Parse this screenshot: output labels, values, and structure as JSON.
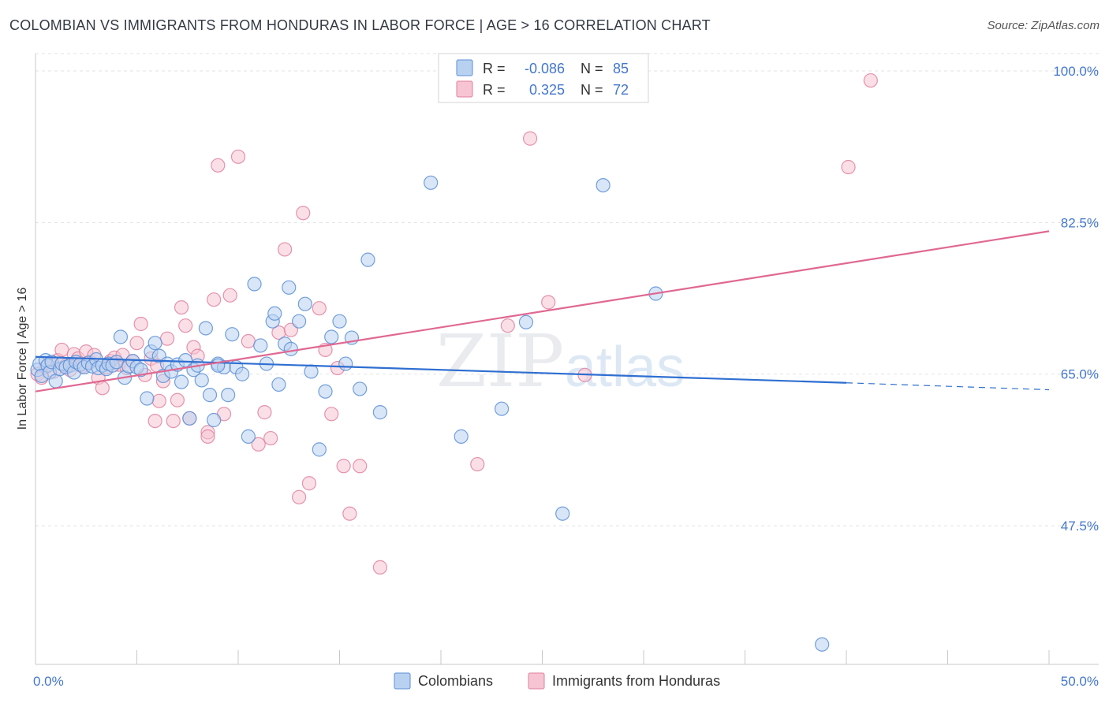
{
  "title": "COLOMBIAN VS IMMIGRANTS FROM HONDURAS IN LABOR FORCE | AGE > 16 CORRELATION CHART",
  "source": "Source: ZipAtlas.com",
  "watermark": {
    "zip": "ZIP",
    "atlas": "atlas"
  },
  "legend_top": {
    "rows": [
      {
        "r_label": "R =",
        "r_value": "-0.086",
        "n_label": "N =",
        "n_value": "85",
        "color": "#5b8fd6",
        "fill": "#b9d1f1"
      },
      {
        "r_label": "R =",
        "r_value": "0.325",
        "n_label": "N =",
        "n_value": "72",
        "color": "#e0819f",
        "fill": "#f6c4d3"
      }
    ]
  },
  "legend_bottom": [
    {
      "label": "Colombians",
      "color": "#5b8fd6",
      "fill": "#b9d1f1"
    },
    {
      "label": "Immigrants from Honduras",
      "color": "#e0819f",
      "fill": "#f6c4d3"
    }
  ],
  "chart_data": {
    "type": "scatter",
    "title": "COLOMBIAN VS IMMIGRANTS FROM HONDURAS IN LABOR FORCE | AGE > 16 CORRELATION CHART",
    "xlabel": "",
    "ylabel": "In Labor Force | Age > 16",
    "xlim": [
      0,
      50
    ],
    "ylim": [
      31.5,
      102
    ],
    "x_tick_labels": [
      "0.0%",
      "50.0%"
    ],
    "y_ticks": [
      47.5,
      65.0,
      82.5,
      100.0
    ],
    "y_tick_labels": [
      "47.5%",
      "65.0%",
      "82.5%",
      "100.0%"
    ],
    "grid": true,
    "legend_position": "top-center",
    "series": [
      {
        "name": "Colombians",
        "color": "#5b8fd6",
        "fill": "#b9d1f1",
        "points": [
          [
            0.1,
            65.5
          ],
          [
            0.2,
            66.2
          ],
          [
            0.3,
            64.8
          ],
          [
            0.5,
            66.6
          ],
          [
            0.6,
            66.0
          ],
          [
            0.7,
            65.2
          ],
          [
            0.8,
            66.4
          ],
          [
            1.0,
            64.2
          ],
          [
            1.2,
            65.6
          ],
          [
            1.3,
            66.2
          ],
          [
            1.5,
            65.8
          ],
          [
            1.7,
            66.0
          ],
          [
            1.9,
            65.2
          ],
          [
            2.0,
            66.4
          ],
          [
            2.2,
            66.1
          ],
          [
            2.4,
            65.8
          ],
          [
            2.6,
            66.3
          ],
          [
            2.8,
            65.9
          ],
          [
            3.0,
            66.7
          ],
          [
            3.1,
            65.7
          ],
          [
            3.3,
            66.0
          ],
          [
            3.5,
            65.6
          ],
          [
            3.6,
            66.2
          ],
          [
            3.8,
            66.0
          ],
          [
            4.0,
            66.4
          ],
          [
            4.2,
            69.3
          ],
          [
            4.4,
            64.6
          ],
          [
            4.6,
            65.9
          ],
          [
            4.8,
            66.5
          ],
          [
            5.0,
            65.8
          ],
          [
            5.2,
            65.5
          ],
          [
            5.5,
            62.2
          ],
          [
            5.7,
            67.6
          ],
          [
            5.9,
            68.6
          ],
          [
            6.1,
            67.1
          ],
          [
            6.3,
            64.8
          ],
          [
            6.5,
            66.2
          ],
          [
            6.7,
            65.3
          ],
          [
            7.0,
            66.1
          ],
          [
            7.2,
            64.1
          ],
          [
            7.4,
            66.6
          ],
          [
            7.6,
            59.9
          ],
          [
            7.8,
            65.5
          ],
          [
            8.0,
            66.0
          ],
          [
            8.2,
            64.3
          ],
          [
            8.4,
            70.3
          ],
          [
            8.6,
            62.6
          ],
          [
            8.8,
            59.7
          ],
          [
            9.0,
            66.2
          ],
          [
            9.3,
            65.8
          ],
          [
            9.5,
            62.6
          ],
          [
            9.7,
            69.6
          ],
          [
            9.9,
            65.8
          ],
          [
            10.2,
            65.0
          ],
          [
            10.5,
            57.8
          ],
          [
            10.8,
            75.4
          ],
          [
            11.1,
            68.3
          ],
          [
            11.4,
            66.2
          ],
          [
            11.7,
            71.1
          ],
          [
            12.0,
            63.8
          ],
          [
            12.3,
            68.5
          ],
          [
            12.6,
            67.9
          ],
          [
            13.0,
            71.1
          ],
          [
            13.3,
            73.1
          ],
          [
            13.6,
            65.3
          ],
          [
            14.0,
            56.3
          ],
          [
            14.3,
            63.0
          ],
          [
            14.6,
            69.3
          ],
          [
            15.0,
            71.1
          ],
          [
            15.3,
            66.2
          ],
          [
            15.6,
            69.2
          ],
          [
            16.0,
            63.3
          ],
          [
            16.4,
            78.2
          ],
          [
            17.0,
            60.6
          ],
          [
            19.5,
            87.1
          ],
          [
            21.0,
            57.8
          ],
          [
            23.0,
            61.0
          ],
          [
            24.2,
            71.0
          ],
          [
            26.0,
            48.9
          ],
          [
            28.0,
            86.8
          ],
          [
            30.6,
            74.3
          ],
          [
            38.8,
            33.8
          ],
          [
            12.5,
            75.0
          ],
          [
            11.8,
            72.0
          ],
          [
            9.0,
            66.0
          ]
        ],
        "trend": {
          "x": [
            0,
            40,
            50
          ],
          "y": [
            67.0,
            64.0,
            63.2
          ],
          "solid_until": 40
        }
      },
      {
        "name": "Immigrants from Honduras",
        "color": "#e0819f",
        "fill": "#f6c4d3",
        "points": [
          [
            0.1,
            65.0
          ],
          [
            0.3,
            64.6
          ],
          [
            0.5,
            65.8
          ],
          [
            0.7,
            66.2
          ],
          [
            0.9,
            65.3
          ],
          [
            1.1,
            66.6
          ],
          [
            1.3,
            67.8
          ],
          [
            1.5,
            66.0
          ],
          [
            1.7,
            65.5
          ],
          [
            1.9,
            67.3
          ],
          [
            2.1,
            66.8
          ],
          [
            2.3,
            65.9
          ],
          [
            2.5,
            67.6
          ],
          [
            2.7,
            66.4
          ],
          [
            2.9,
            67.2
          ],
          [
            3.1,
            64.6
          ],
          [
            3.3,
            63.4
          ],
          [
            3.5,
            65.8
          ],
          [
            3.7,
            66.5
          ],
          [
            3.9,
            66.9
          ],
          [
            4.1,
            66.1
          ],
          [
            4.3,
            67.2
          ],
          [
            4.5,
            65.7
          ],
          [
            4.8,
            66.5
          ],
          [
            5.0,
            68.6
          ],
          [
            5.2,
            70.8
          ],
          [
            5.4,
            64.9
          ],
          [
            5.7,
            66.8
          ],
          [
            5.9,
            59.6
          ],
          [
            6.1,
            61.9
          ],
          [
            6.3,
            64.2
          ],
          [
            6.5,
            69.1
          ],
          [
            6.8,
            59.6
          ],
          [
            7.0,
            62.0
          ],
          [
            7.2,
            72.7
          ],
          [
            7.4,
            70.6
          ],
          [
            7.6,
            59.9
          ],
          [
            7.8,
            68.1
          ],
          [
            8.0,
            67.1
          ],
          [
            8.5,
            58.3
          ],
          [
            8.8,
            73.6
          ],
          [
            9.0,
            89.1
          ],
          [
            9.3,
            60.4
          ],
          [
            9.6,
            74.1
          ],
          [
            10.0,
            90.1
          ],
          [
            10.5,
            68.8
          ],
          [
            11.0,
            56.9
          ],
          [
            11.3,
            60.6
          ],
          [
            11.6,
            57.6
          ],
          [
            12.0,
            69.8
          ],
          [
            12.3,
            79.4
          ],
          [
            12.6,
            70.1
          ],
          [
            13.0,
            50.8
          ],
          [
            13.5,
            52.4
          ],
          [
            14.0,
            72.6
          ],
          [
            14.3,
            67.8
          ],
          [
            14.6,
            60.4
          ],
          [
            14.9,
            65.7
          ],
          [
            15.2,
            54.4
          ],
          [
            15.5,
            48.9
          ],
          [
            16.0,
            54.4
          ],
          [
            17.0,
            42.7
          ],
          [
            21.8,
            54.6
          ],
          [
            23.3,
            70.6
          ],
          [
            24.4,
            92.2
          ],
          [
            25.3,
            73.3
          ],
          [
            27.1,
            64.9
          ],
          [
            40.1,
            88.9
          ],
          [
            41.2,
            98.9
          ],
          [
            13.2,
            83.6
          ],
          [
            8.5,
            57.8
          ],
          [
            6.0,
            66.0
          ]
        ],
        "trend": {
          "x": [
            0,
            50
          ],
          "y": [
            63.0,
            81.5
          ],
          "solid_until": 50
        }
      }
    ]
  }
}
